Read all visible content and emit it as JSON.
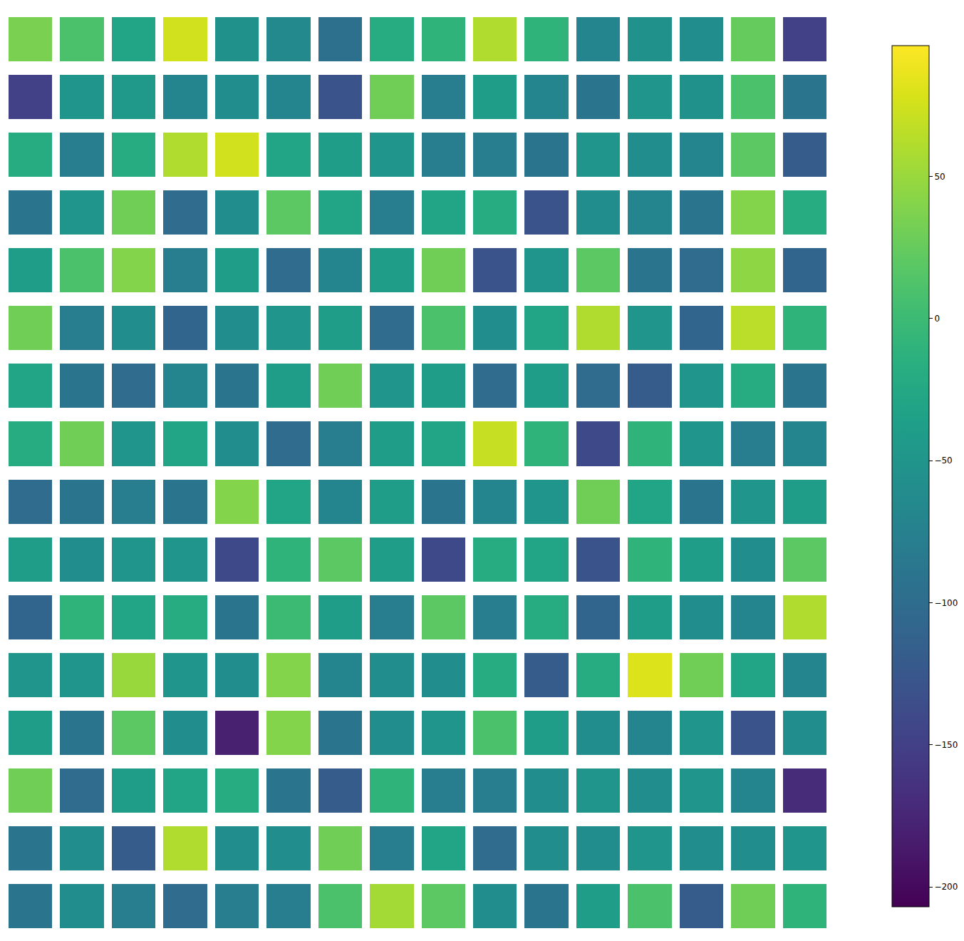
{
  "chart_data": {
    "type": "heatmap",
    "color": "Viridis",
    "tick_labels": false,
    "cells": [
      [
        35,
        10,
        -30,
        75,
        -55,
        -65,
        -95,
        -20,
        -10,
        60,
        -10,
        -70,
        -55,
        -60,
        25,
        -150
      ],
      [
        -150,
        -50,
        -45,
        -70,
        -60,
        -70,
        -130,
        30,
        -80,
        -40,
        -70,
        -90,
        -50,
        -55,
        10,
        -90
      ],
      [
        -20,
        -80,
        -20,
        60,
        75,
        -30,
        -40,
        -50,
        -80,
        -80,
        -90,
        -50,
        -60,
        -70,
        20,
        -120
      ],
      [
        -90,
        -50,
        30,
        -100,
        -60,
        20,
        -30,
        -80,
        -30,
        -20,
        -130,
        -60,
        -70,
        -90,
        40,
        -20
      ],
      [
        -40,
        10,
        40,
        -80,
        -40,
        -100,
        -70,
        -40,
        30,
        -130,
        -50,
        20,
        -90,
        -100,
        45,
        -110
      ],
      [
        30,
        -80,
        -60,
        -110,
        -60,
        -50,
        -40,
        -100,
        10,
        -60,
        -30,
        60,
        -50,
        -110,
        65,
        -10
      ],
      [
        -30,
        -90,
        -100,
        -70,
        -90,
        -40,
        30,
        -50,
        -40,
        -100,
        -40,
        -100,
        -120,
        -50,
        -20,
        -90
      ],
      [
        -20,
        30,
        -50,
        -30,
        -60,
        -100,
        -80,
        -40,
        -30,
        70,
        -10,
        -140,
        -10,
        -50,
        -80,
        -70
      ],
      [
        -100,
        -90,
        -80,
        -90,
        40,
        -30,
        -70,
        -40,
        -90,
        -70,
        -50,
        30,
        -30,
        -90,
        -50,
        -40
      ],
      [
        -40,
        -60,
        -50,
        -50,
        -140,
        -10,
        20,
        -40,
        -140,
        -20,
        -30,
        -130,
        -10,
        -40,
        -60,
        20
      ],
      [
        -110,
        -10,
        -30,
        -20,
        -90,
        0,
        -40,
        -80,
        20,
        -80,
        -20,
        -110,
        -40,
        -60,
        -70,
        60
      ],
      [
        -50,
        -50,
        50,
        -50,
        -60,
        40,
        -70,
        -60,
        -60,
        -20,
        -120,
        -20,
        80,
        30,
        -30,
        -70
      ],
      [
        -40,
        -90,
        20,
        -60,
        -180,
        40,
        -90,
        -60,
        -50,
        10,
        -40,
        -60,
        -70,
        -50,
        -130,
        -60
      ],
      [
        30,
        -100,
        -40,
        -30,
        -20,
        -90,
        -120,
        -10,
        -80,
        -80,
        -60,
        -50,
        -60,
        -50,
        -70,
        -170
      ],
      [
        -90,
        -60,
        -120,
        60,
        -60,
        -60,
        30,
        -80,
        -30,
        -100,
        -60,
        -60,
        -50,
        -60,
        -60,
        -50
      ],
      [
        -90,
        -60,
        -80,
        -100,
        -80,
        -80,
        10,
        55,
        20,
        -60,
        -90,
        -40,
        10,
        -120,
        30,
        -10
      ]
    ],
    "colorbar_range": [
      -207,
      96
    ],
    "colorbar_ticks": [
      {
        "value": -200,
        "label": "−200"
      },
      {
        "value": -150,
        "label": "−150"
      },
      {
        "value": -100,
        "label": "−100"
      },
      {
        "value": -50,
        "label": "−50"
      },
      0,
      50
    ]
  }
}
